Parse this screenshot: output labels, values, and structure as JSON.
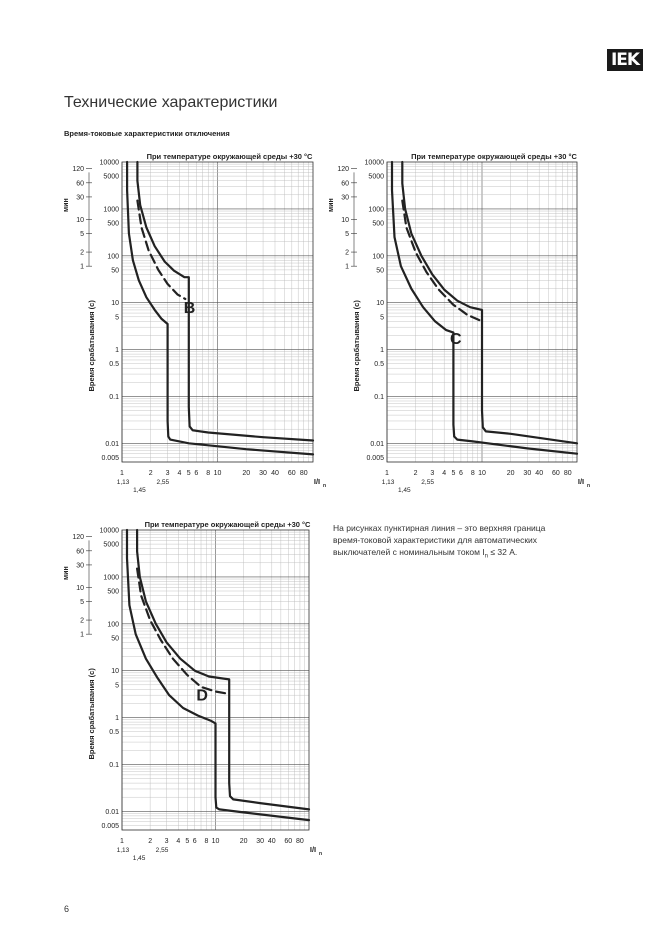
{
  "header": {
    "logo_text": "IEK",
    "title": "Технические характеристики",
    "section": "Время-токовые характеристики отключения"
  },
  "page_number": "6",
  "note": {
    "text": "На рисунках пунктирная линия – это верхняя граница время-токовой характеристики для автоматических выключателей с номинальным током I",
    "sub": "n",
    "tail": " ≤ 32 А."
  },
  "colors": {
    "curve": "#222222",
    "grid_major": "#555555",
    "grid_minor": "#bdbdbd",
    "text": "#222222"
  },
  "chart_data": [
    {
      "type": "line",
      "title": "При температуре окружающей среды +30 °C",
      "label": "B",
      "xscale": "log",
      "yscale": "log",
      "xlim": [
        1,
        100
      ],
      "ylim": [
        0.004,
        10000
      ],
      "ylabel": "Время срабатывания (с)",
      "ylabel_min": "мин",
      "xlabel": "I/In",
      "x_ticks": [
        "1",
        "2",
        "3",
        "4",
        "5",
        "6",
        "8",
        "10",
        "20",
        "30",
        "40",
        "60",
        "80"
      ],
      "x_ticks_extra": [
        "1,13",
        "1,45",
        "2,55"
      ],
      "y_ticks_s": [
        "10000",
        "5000",
        "1000",
        "500",
        "100",
        "50",
        "10",
        "5",
        "1",
        "0.5",
        "0.1",
        "0.01",
        "0.005"
      ],
      "y_ticks_min": [
        "120",
        "60",
        "30",
        "10",
        "5",
        "2",
        "1"
      ],
      "series": [
        {
          "style": "solid",
          "x": [
            1.13,
            1.13,
            1.18,
            1.3,
            1.5,
            1.8,
            2.2,
            2.6,
            3,
            3,
            3.05,
            3.2,
            5,
            20,
            100
          ],
          "y": [
            10000,
            2500,
            300,
            80,
            30,
            13,
            7,
            4.5,
            3.5,
            0.03,
            0.014,
            0.012,
            0.01,
            0.0075,
            0.0058
          ]
        },
        {
          "style": "solid",
          "x": [
            1.45,
            1.45,
            1.55,
            1.8,
            2.2,
            2.8,
            3.5,
            4.5,
            5,
            5,
            5.1,
            5.5,
            8,
            30,
            100
          ],
          "y": [
            10000,
            4000,
            1200,
            400,
            160,
            75,
            48,
            35,
            35,
            0.06,
            0.023,
            0.019,
            0.017,
            0.0135,
            0.0115
          ]
        },
        {
          "style": "dashed",
          "x": [
            1.45,
            1.6,
            1.9,
            2.4,
            3,
            3.8,
            4.6
          ],
          "y": [
            1500,
            400,
            130,
            50,
            25,
            15,
            12
          ]
        }
      ]
    },
    {
      "type": "line",
      "title": "При температуре окружающей среды +30 °C",
      "label": "C",
      "xscale": "log",
      "yscale": "log",
      "xlim": [
        1,
        100
      ],
      "ylim": [
        0.004,
        10000
      ],
      "ylabel": "Время срабатывания (с)",
      "ylabel_min": "мин",
      "xlabel": "I/In",
      "x_ticks": [
        "1",
        "2",
        "3",
        "4",
        "5",
        "6",
        "8",
        "10",
        "20",
        "30",
        "40",
        "60",
        "80"
      ],
      "x_ticks_extra": [
        "1,13",
        "1,45",
        "2,55"
      ],
      "y_ticks_s": [
        "10000",
        "5000",
        "1000",
        "500",
        "100",
        "50",
        "10",
        "5",
        "1",
        "0.5",
        "0.1",
        "0.01",
        "0.005"
      ],
      "y_ticks_min": [
        "120",
        "60",
        "30",
        "10",
        "5",
        "2",
        "1"
      ],
      "series": [
        {
          "style": "solid",
          "x": [
            1.13,
            1.13,
            1.2,
            1.4,
            1.8,
            2.4,
            3.2,
            4.2,
            5,
            5,
            5.1,
            5.5,
            8,
            30,
            100
          ],
          "y": [
            10000,
            2500,
            250,
            60,
            20,
            8,
            4,
            2.6,
            2.3,
            0.025,
            0.014,
            0.012,
            0.011,
            0.0078,
            0.006
          ]
        },
        {
          "style": "solid",
          "x": [
            1.45,
            1.45,
            1.55,
            1.8,
            2.3,
            3,
            4,
            5.5,
            7.5,
            10,
            10,
            10.2,
            11,
            20,
            100
          ],
          "y": [
            10000,
            3500,
            1000,
            300,
            100,
            40,
            19,
            11,
            8,
            7,
            0.05,
            0.022,
            0.018,
            0.016,
            0.01
          ]
        },
        {
          "style": "dashed",
          "x": [
            1.45,
            1.6,
            2,
            2.6,
            3.5,
            5,
            7,
            10
          ],
          "y": [
            1500,
            400,
            120,
            45,
            19,
            9,
            5.5,
            4
          ]
        }
      ]
    },
    {
      "type": "line",
      "title": "При температуре окружающей среды +30 °C",
      "label": "D",
      "xscale": "log",
      "yscale": "log",
      "xlim": [
        1,
        100
      ],
      "ylim": [
        0.004,
        10000
      ],
      "ylabel": "Время срабатывания (с)",
      "ylabel_min": "мин",
      "xlabel": "I/In",
      "x_ticks": [
        "1",
        "2",
        "3",
        "4",
        "5",
        "6",
        "8",
        "10",
        "20",
        "30",
        "40",
        "60",
        "80"
      ],
      "x_ticks_extra": [
        "1,13",
        "1,45",
        "2,55"
      ],
      "y_ticks_s": [
        "10000",
        "5000",
        "1000",
        "500",
        "100",
        "50",
        "10",
        "5",
        "1",
        "0.5",
        "0.1",
        "0.01",
        "0.005"
      ],
      "y_ticks_min": [
        "120",
        "60",
        "30",
        "10",
        "5",
        "2",
        "1"
      ],
      "series": [
        {
          "style": "solid",
          "x": [
            1.13,
            1.13,
            1.2,
            1.4,
            1.8,
            2.4,
            3.2,
            4.5,
            6.5,
            9,
            10,
            10,
            10.2,
            11,
            20,
            100
          ],
          "y": [
            10000,
            2500,
            250,
            60,
            18,
            7,
            3,
            1.6,
            1.1,
            0.85,
            0.75,
            0.02,
            0.012,
            0.011,
            0.0095,
            0.0065
          ]
        },
        {
          "style": "solid",
          "x": [
            1.45,
            1.45,
            1.55,
            1.8,
            2.3,
            3,
            4.2,
            6,
            8.5,
            12,
            14,
            14,
            14.3,
            15.5,
            30,
            100
          ],
          "y": [
            10000,
            3500,
            1000,
            300,
            100,
            40,
            18,
            10,
            7.5,
            6.8,
            6.5,
            0.04,
            0.021,
            0.018,
            0.015,
            0.011
          ]
        },
        {
          "style": "dashed",
          "x": [
            1.45,
            1.6,
            2,
            2.6,
            3.5,
            5,
            7,
            10,
            14
          ],
          "y": [
            1500,
            400,
            120,
            45,
            18,
            8,
            4.5,
            3.6,
            3.2
          ]
        }
      ]
    }
  ]
}
